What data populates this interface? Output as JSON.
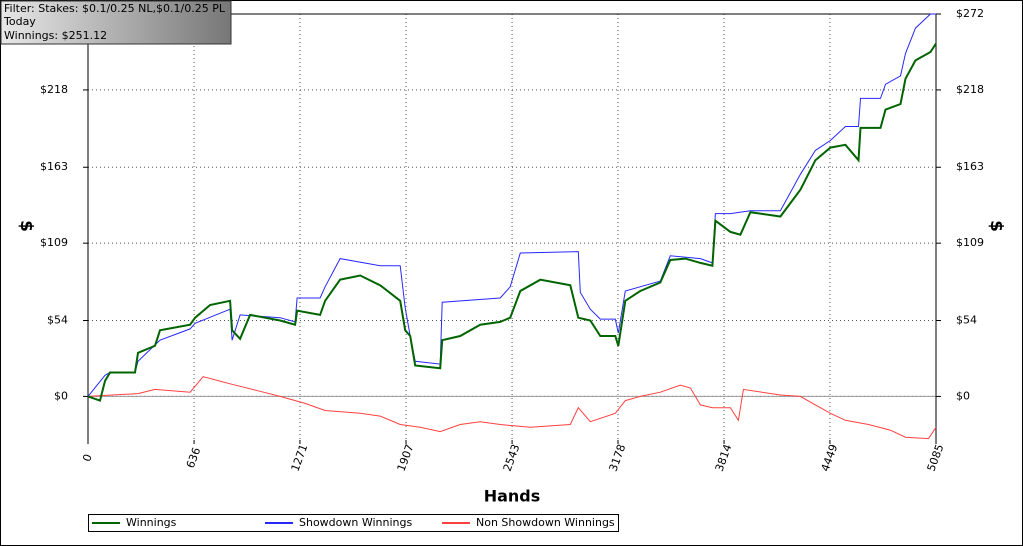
{
  "filter_box": {
    "lines": [
      "Filter: Stakes: $0.1/0.25 NL,$0.1/0.25 PL",
      "Today",
      "Winnings: $251.12"
    ]
  },
  "chart_data": {
    "type": "line",
    "xlabel": "Hands",
    "ylabel": "$",
    "y2label": "$",
    "xlim": [
      0,
      5085
    ],
    "xticks": [
      0,
      636,
      1271,
      1907,
      2543,
      3178,
      3814,
      4449,
      5085
    ],
    "ylim": [
      -31,
      272
    ],
    "yticks": [
      {
        "value": 0,
        "label": "$0"
      },
      {
        "value": 54,
        "label": "$54"
      },
      {
        "value": 109,
        "label": "$109"
      },
      {
        "value": 163,
        "label": "$163"
      },
      {
        "value": 218,
        "label": "$218"
      },
      {
        "value": 272,
        "label": "$272"
      }
    ],
    "grid": true,
    "legend": "bottom",
    "series": [
      {
        "name": "Winnings",
        "color": "#006400",
        "x": [
          0,
          72,
          102,
          132,
          282,
          300,
          402,
          432,
          612,
          642,
          732,
          852,
          864,
          912,
          972,
          1152,
          1242,
          1254,
          1392,
          1422,
          1512,
          1632,
          1752,
          1872,
          1902,
          1932,
          1962,
          2112,
          2124,
          2232,
          2352,
          2472,
          2532,
          2592,
          2712,
          2892,
          2940,
          3012,
          3072,
          3162,
          3180,
          3222,
          3312,
          3432,
          3492,
          3582,
          3672,
          3744,
          3762,
          3852,
          3912,
          3972,
          4152,
          4272,
          4362,
          4452,
          4542,
          4620,
          4632,
          4752,
          4782,
          4872,
          4902,
          4962,
          5052,
          5085
        ],
        "values": [
          0,
          -3,
          11,
          17,
          17,
          31,
          36,
          47,
          51,
          56,
          65,
          68,
          47,
          41,
          58,
          54,
          51,
          61,
          58,
          68,
          83,
          86,
          79,
          68,
          47,
          43,
          22,
          20,
          40,
          43,
          51,
          53,
          56,
          75,
          83,
          79,
          56,
          54,
          43,
          43,
          36,
          68,
          75,
          81,
          97,
          98,
          95,
          93,
          125,
          117,
          115,
          131,
          128,
          147,
          168,
          177,
          179,
          168,
          191,
          191,
          204,
          208,
          226,
          239,
          245,
          251
        ]
      },
      {
        "name": "Showdown Winnings",
        "color": "#2828ff",
        "x": [
          0,
          102,
          132,
          282,
          300,
          432,
          612,
          642,
          852,
          864,
          912,
          1152,
          1242,
          1254,
          1392,
          1422,
          1512,
          1752,
          1872,
          1902,
          1932,
          1962,
          2112,
          2124,
          2472,
          2532,
          2592,
          2940,
          2952,
          3012,
          3072,
          3162,
          3180,
          3222,
          3432,
          3492,
          3672,
          3744,
          3762,
          3852,
          3972,
          4152,
          4272,
          4362,
          4452,
          4542,
          4620,
          4632,
          4752,
          4782,
          4872,
          4902,
          4962,
          5052,
          5085
        ],
        "values": [
          0,
          15,
          17,
          17,
          25,
          40,
          48,
          52,
          62,
          40,
          58,
          56,
          53,
          70,
          70,
          78,
          98,
          93,
          93,
          63,
          43,
          25,
          23,
          67,
          70,
          78,
          102,
          103,
          74,
          62,
          55,
          55,
          45,
          75,
          82,
          100,
          98,
          95,
          130,
          130,
          132,
          132,
          158,
          175,
          182,
          192,
          192,
          212,
          212,
          222,
          228,
          244,
          262,
          272,
          272
        ]
      },
      {
        "name": "Non Showdown Winnings",
        "color": "#ff4040",
        "x": [
          0,
          300,
          402,
          612,
          690,
          852,
          1020,
          1152,
          1302,
          1422,
          1632,
          1752,
          1872,
          1992,
          2112,
          2232,
          2352,
          2472,
          2652,
          2892,
          2940,
          3012,
          3162,
          3222,
          3312,
          3432,
          3552,
          3612,
          3672,
          3744,
          3852,
          3900,
          3930,
          4152,
          4272,
          4362,
          4452,
          4542,
          4680,
          4812,
          4902,
          5040,
          5085
        ],
        "values": [
          0,
          2,
          5,
          3,
          14,
          9,
          4,
          0,
          -5,
          -10,
          -12,
          -14,
          -20,
          -22,
          -25,
          -20,
          -18,
          -20,
          -22,
          -20,
          -8,
          -18,
          -12,
          -3,
          0,
          3,
          8,
          6,
          -6,
          -8,
          -8,
          -17,
          5,
          1,
          0,
          -6,
          -12,
          -17,
          -20,
          -24,
          -29,
          -30,
          -22
        ]
      }
    ]
  }
}
